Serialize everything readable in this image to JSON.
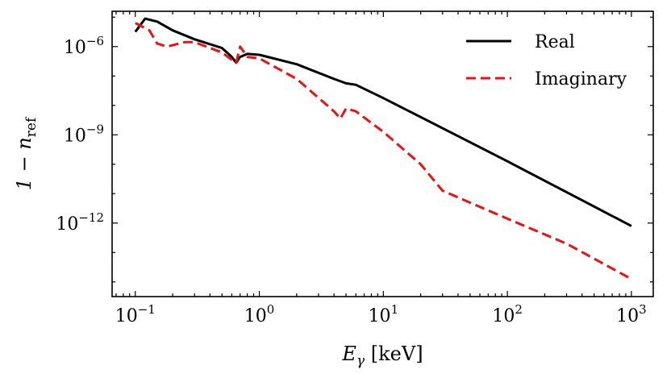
{
  "chart_data": {
    "type": "line",
    "title": "",
    "xscale": "log",
    "yscale": "log",
    "xlim": [
      0.065,
      1500
    ],
    "ylim_exponent": [
      -14.5,
      -4.8
    ],
    "x_ticks": [
      {
        "base": "10",
        "exp": "−1",
        "value": 0.1
      },
      {
        "base": "10",
        "exp": "0",
        "value": 1
      },
      {
        "base": "10",
        "exp": "1",
        "value": 10
      },
      {
        "base": "10",
        "exp": "2",
        "value": 100
      },
      {
        "base": "10",
        "exp": "3",
        "value": 1000
      }
    ],
    "y_ticks": [
      {
        "base": "10",
        "exp": "−6",
        "value_exp": -6
      },
      {
        "base": "10",
        "exp": "−9",
        "value_exp": -9
      },
      {
        "base": "10",
        "exp": "−12",
        "value_exp": -12
      }
    ],
    "xlabel": {
      "main": "E",
      "sub": "γ",
      "unit": " [keV]"
    },
    "ylabel": {
      "main": "1 − n",
      "sub": "ref"
    },
    "legend_position": "top-right",
    "grid": false,
    "series": [
      {
        "name": "Real",
        "color": "#000000",
        "dash": "solid",
        "points": [
          [
            0.1,
            -5.5
          ],
          [
            0.12,
            -5.05
          ],
          [
            0.15,
            -5.15
          ],
          [
            0.2,
            -5.45
          ],
          [
            0.3,
            -5.75
          ],
          [
            0.5,
            -6.05
          ],
          [
            0.6,
            -6.35
          ],
          [
            0.65,
            -6.55
          ],
          [
            0.7,
            -6.35
          ],
          [
            0.8,
            -6.25
          ],
          [
            1,
            -6.28
          ],
          [
            2,
            -6.6
          ],
          [
            4,
            -7.1
          ],
          [
            5,
            -7.25
          ],
          [
            6,
            -7.3
          ],
          [
            10,
            -7.75
          ],
          [
            100,
            -9.9
          ],
          [
            1000,
            -12.1
          ]
        ]
      },
      {
        "name": "Imaginary",
        "color": "#ee1111",
        "dash": "dashed",
        "points": [
          [
            0.1,
            -5.2
          ],
          [
            0.13,
            -5.45
          ],
          [
            0.15,
            -5.9
          ],
          [
            0.18,
            -6.0
          ],
          [
            0.25,
            -5.85
          ],
          [
            0.3,
            -5.85
          ],
          [
            0.5,
            -6.2
          ],
          [
            0.6,
            -6.45
          ],
          [
            0.65,
            -6.55
          ],
          [
            0.7,
            -6.0
          ],
          [
            0.8,
            -6.35
          ],
          [
            1,
            -6.4
          ],
          [
            2,
            -7.1
          ],
          [
            4,
            -8.2
          ],
          [
            4.5,
            -8.45
          ],
          [
            5,
            -8.1
          ],
          [
            6,
            -8.2
          ],
          [
            10,
            -8.9
          ],
          [
            20,
            -10.0
          ],
          [
            30,
            -10.9
          ],
          [
            100,
            -11.85
          ],
          [
            300,
            -12.7
          ],
          [
            1000,
            -13.9
          ]
        ]
      }
    ]
  }
}
